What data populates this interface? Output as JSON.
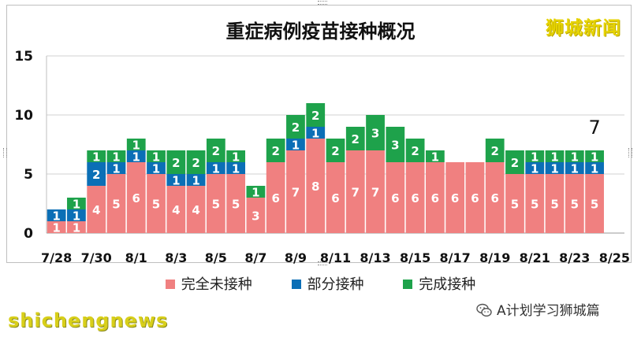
{
  "title": "重症病例疫苗接种概况",
  "brand_label": "狮城新闻",
  "watermark": "shichengnews",
  "source_label": "A计划学习狮城篇",
  "colors": {
    "unvaccinated": "#f08080",
    "partial": "#0b6fb6",
    "full": "#1ea24b",
    "axis": "#bfbfbf",
    "grid": "#d0d0d0"
  },
  "chart_data": {
    "type": "bar",
    "stacked": true,
    "title": "重症病例疫苗接种概况",
    "xlabel": "",
    "ylabel": "",
    "ylim": [
      0,
      15
    ],
    "yticks": [
      0,
      5,
      10,
      15
    ],
    "grid": true,
    "legend_position": "bottom",
    "categories": [
      "7/28",
      "7/29",
      "7/30",
      "7/31",
      "8/1",
      "8/2",
      "8/3",
      "8/4",
      "8/5",
      "8/6",
      "8/7",
      "8/8",
      "8/9",
      "8/10",
      "8/11",
      "8/12",
      "8/13",
      "8/14",
      "8/15",
      "8/16",
      "8/17",
      "8/18",
      "8/19",
      "8/20",
      "8/21",
      "8/22",
      "8/23",
      "8/24",
      "8/25"
    ],
    "tick_labels": [
      "7/28",
      "7/30",
      "8/1",
      "8/3",
      "8/5",
      "8/7",
      "8/9",
      "8/11",
      "8/13",
      "8/15",
      "8/17",
      "8/19",
      "8/21",
      "8/23",
      "8/25"
    ],
    "series": [
      {
        "name": "完全未接种",
        "values": [
          1,
          1,
          4,
          5,
          6,
          5,
          4,
          4,
          5,
          5,
          3,
          6,
          7,
          8,
          6,
          7,
          7,
          6,
          6,
          6,
          6,
          6,
          6,
          5,
          5,
          5,
          5,
          5,
          0
        ]
      },
      {
        "name": "部分接种",
        "values": [
          1,
          1,
          2,
          1,
          1,
          1,
          1,
          1,
          1,
          1,
          0,
          0,
          1,
          1,
          0,
          0,
          0,
          0,
          0,
          0,
          0,
          0,
          0,
          0,
          1,
          1,
          1,
          1,
          0
        ]
      },
      {
        "name": "完成接种",
        "values": [
          0,
          1,
          1,
          1,
          1,
          1,
          2,
          2,
          2,
          1,
          1,
          2,
          2,
          2,
          2,
          2,
          3,
          3,
          2,
          1,
          0,
          0,
          2,
          2,
          1,
          1,
          1,
          1,
          0
        ]
      }
    ],
    "annotations": [
      {
        "category": "8/24",
        "text": "7"
      }
    ]
  }
}
